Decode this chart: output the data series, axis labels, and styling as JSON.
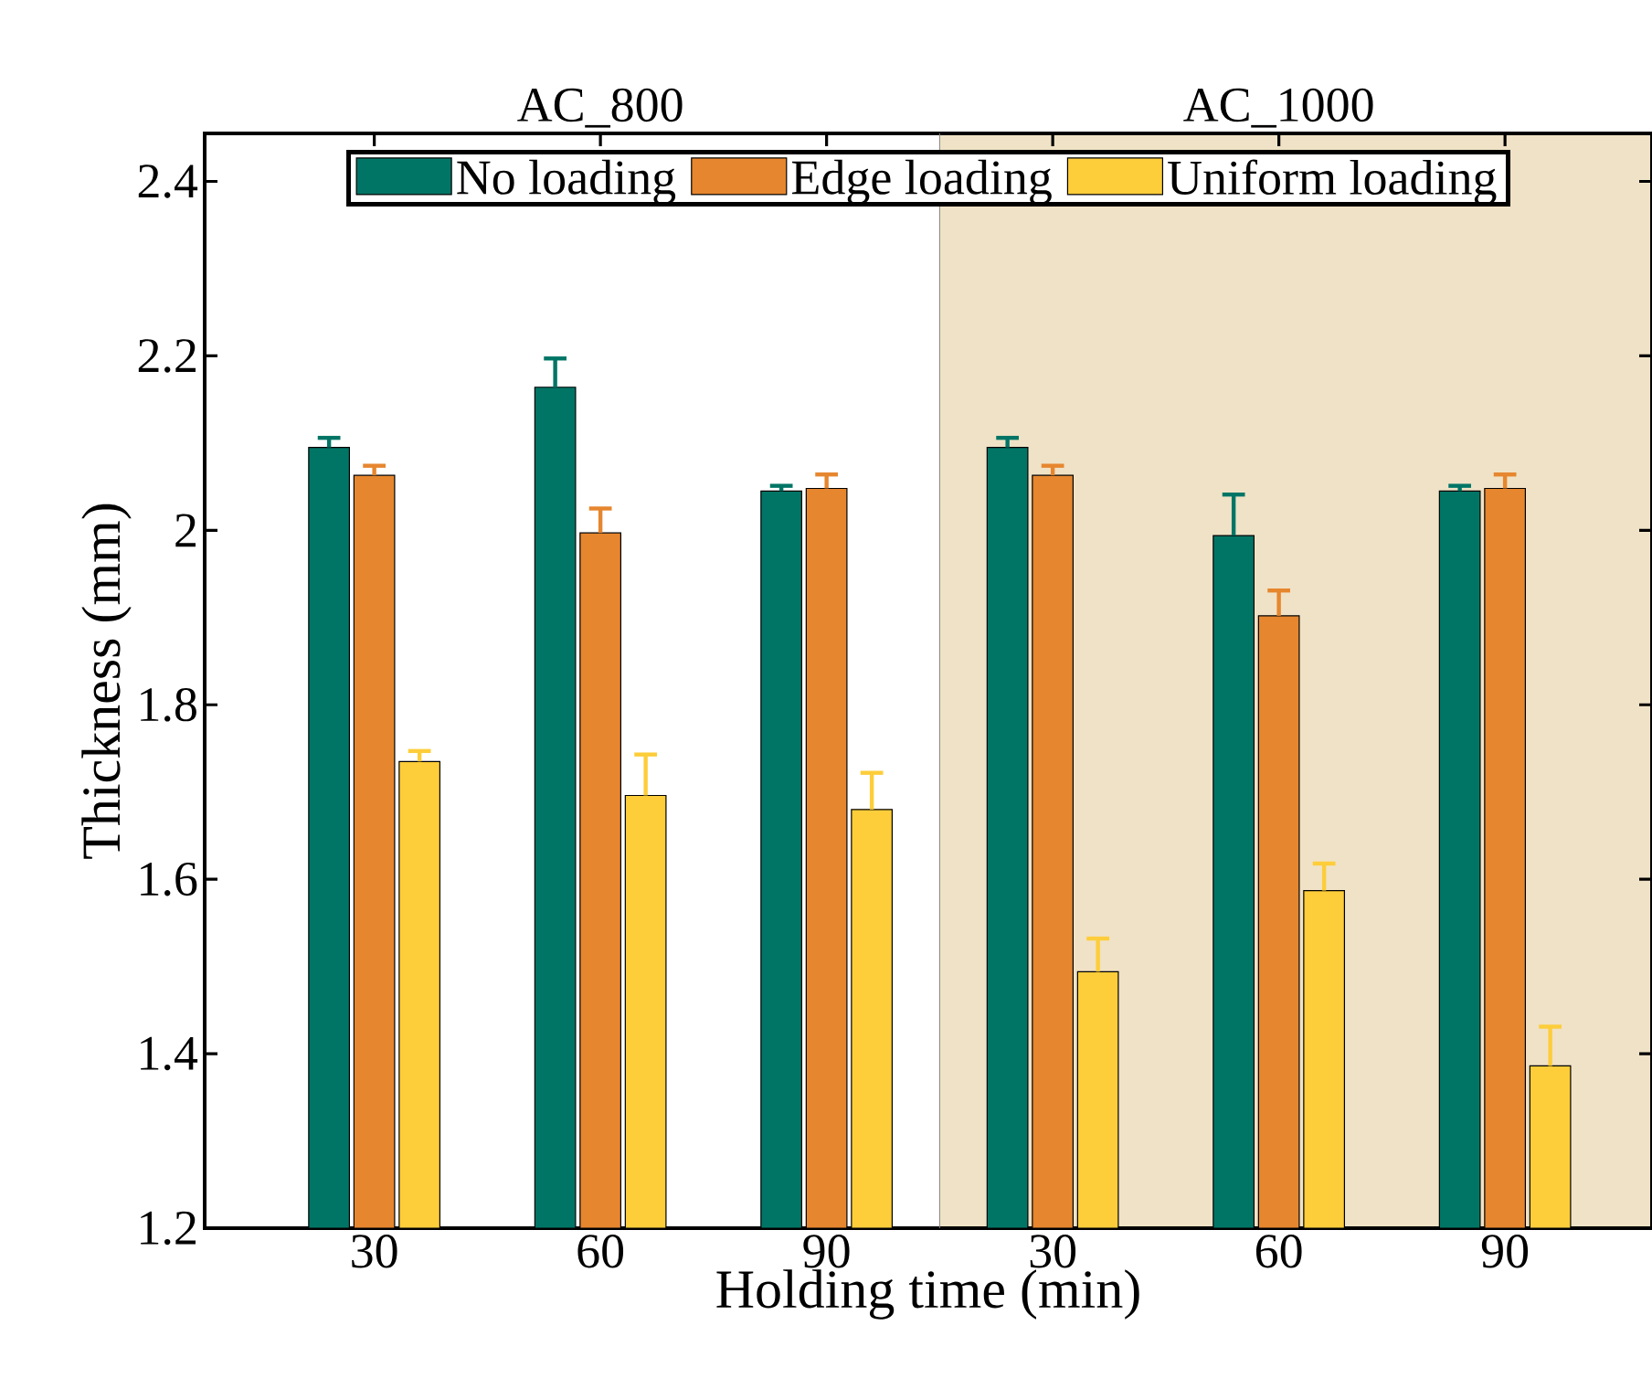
{
  "chart_data": {
    "type": "bar",
    "xlabel": "Holding time (min)",
    "ylabel": "Thickness (mm)",
    "categories": [
      "30",
      "60",
      "90",
      "30",
      "60",
      "90"
    ],
    "series": [
      {
        "name": "No loading",
        "color": "#007566",
        "values": [
          2.095,
          2.164,
          2.045,
          2.095,
          1.994,
          2.045
        ],
        "errors": [
          0.011,
          0.033,
          0.006,
          0.011,
          0.047,
          0.006
        ]
      },
      {
        "name": "Edge loading",
        "color": "#e6862e",
        "values": [
          2.063,
          1.997,
          2.048,
          2.063,
          1.902,
          2.048
        ],
        "errors": [
          0.011,
          0.028,
          0.016,
          0.011,
          0.029,
          0.016
        ]
      },
      {
        "name": "Uniform loading",
        "color": "#fdcd3a",
        "values": [
          1.735,
          1.696,
          1.68,
          1.494,
          1.587,
          1.386
        ],
        "errors": [
          0.012,
          0.047,
          0.042,
          0.038,
          0.031,
          0.045
        ]
      }
    ],
    "ylim": [
      1.2,
      2.455
    ],
    "yticks": [
      1.2,
      1.4,
      1.6,
      1.8,
      2,
      2.2,
      2.4
    ],
    "annotations": [
      "AC_800",
      "AC_1000"
    ],
    "legend": "top",
    "grid": false
  }
}
